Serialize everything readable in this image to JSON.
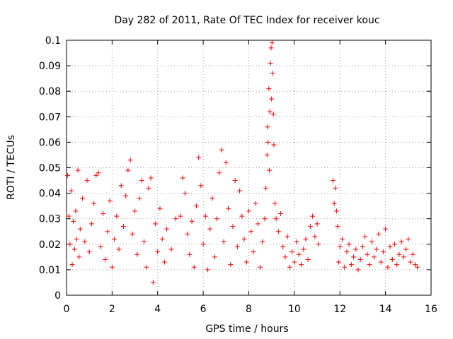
{
  "chart_data": {
    "type": "scatter",
    "title": "Day 282 of 2011, Rate Of TEC Index for receiver kouc",
    "xlabel": "GPS time / hours",
    "ylabel": "ROTI / TECUs",
    "xlim": [
      0,
      16
    ],
    "ylim": [
      0,
      0.1
    ],
    "xticks": [
      "0",
      "2",
      "4",
      "6",
      "8",
      "10",
      "12",
      "14",
      "16"
    ],
    "yticks": [
      "0",
      "0.01",
      "0.02",
      "0.03",
      "0.04",
      "0.05",
      "0.06",
      "0.07",
      "0.08",
      "0.09",
      "0.1"
    ],
    "grid": true,
    "marker": "+",
    "color": "#ff0000",
    "series": [
      {
        "name": "ROTI",
        "points": [
          [
            0.05,
            0.047
          ],
          [
            0.1,
            0.031
          ],
          [
            0.15,
            0.02
          ],
          [
            0.2,
            0.041
          ],
          [
            0.25,
            0.012
          ],
          [
            0.3,
            0.029
          ],
          [
            0.35,
            0.018
          ],
          [
            0.4,
            0.033
          ],
          [
            0.45,
            0.022
          ],
          [
            0.5,
            0.049
          ],
          [
            0.55,
            0.015
          ],
          [
            0.6,
            0.026
          ],
          [
            0.7,
            0.038
          ],
          [
            0.8,
            0.021
          ],
          [
            0.9,
            0.045
          ],
          [
            1.0,
            0.017
          ],
          [
            1.1,
            0.028
          ],
          [
            1.2,
            0.036
          ],
          [
            1.3,
            0.047
          ],
          [
            1.4,
            0.048
          ],
          [
            1.5,
            0.019
          ],
          [
            1.6,
            0.032
          ],
          [
            1.7,
            0.014
          ],
          [
            1.8,
            0.025
          ],
          [
            1.9,
            0.037
          ],
          [
            2.0,
            0.011
          ],
          [
            2.1,
            0.022
          ],
          [
            2.2,
            0.031
          ],
          [
            2.3,
            0.018
          ],
          [
            2.4,
            0.043
          ],
          [
            2.5,
            0.027
          ],
          [
            2.6,
            0.039
          ],
          [
            2.7,
            0.049
          ],
          [
            2.8,
            0.053
          ],
          [
            2.9,
            0.024
          ],
          [
            3.0,
            0.033
          ],
          [
            3.1,
            0.016
          ],
          [
            3.2,
            0.038
          ],
          [
            3.3,
            0.045
          ],
          [
            3.4,
            0.021
          ],
          [
            3.5,
            0.011
          ],
          [
            3.6,
            0.042
          ],
          [
            3.7,
            0.046
          ],
          [
            3.8,
            0.005
          ],
          [
            3.9,
            0.028
          ],
          [
            4.0,
            0.017
          ],
          [
            4.1,
            0.034
          ],
          [
            4.2,
            0.022
          ],
          [
            4.3,
            0.013
          ],
          [
            4.4,
            0.026
          ],
          [
            4.6,
            0.018
          ],
          [
            4.8,
            0.03
          ],
          [
            5.0,
            0.031
          ],
          [
            5.1,
            0.046
          ],
          [
            5.2,
            0.04
          ],
          [
            5.3,
            0.024
          ],
          [
            5.4,
            0.016
          ],
          [
            5.5,
            0.029
          ],
          [
            5.6,
            0.011
          ],
          [
            5.7,
            0.035
          ],
          [
            5.8,
            0.054
          ],
          [
            5.9,
            0.043
          ],
          [
            6.0,
            0.02
          ],
          [
            6.1,
            0.031
          ],
          [
            6.2,
            0.01
          ],
          [
            6.3,
            0.026
          ],
          [
            6.4,
            0.038
          ],
          [
            6.5,
            0.015
          ],
          [
            6.6,
            0.03
          ],
          [
            6.7,
            0.048
          ],
          [
            6.8,
            0.057
          ],
          [
            6.9,
            0.021
          ],
          [
            7.0,
            0.052
          ],
          [
            7.1,
            0.034
          ],
          [
            7.2,
            0.012
          ],
          [
            7.3,
            0.027
          ],
          [
            7.4,
            0.045
          ],
          [
            7.5,
            0.019
          ],
          [
            7.6,
            0.041
          ],
          [
            7.7,
            0.031
          ],
          [
            7.8,
            0.022
          ],
          [
            7.9,
            0.013
          ],
          [
            8.0,
            0.033
          ],
          [
            8.1,
            0.025
          ],
          [
            8.2,
            0.017
          ],
          [
            8.3,
            0.036
          ],
          [
            8.4,
            0.028
          ],
          [
            8.5,
            0.011
          ],
          [
            8.6,
            0.021
          ],
          [
            8.7,
            0.03
          ],
          [
            8.75,
            0.042
          ],
          [
            8.8,
            0.055
          ],
          [
            8.82,
            0.066
          ],
          [
            8.85,
            0.06
          ],
          [
            8.88,
            0.081
          ],
          [
            8.9,
            0.049
          ],
          [
            8.92,
            0.072
          ],
          [
            8.95,
            0.091
          ],
          [
            8.98,
            0.097
          ],
          [
            9.0,
            0.077
          ],
          [
            9.02,
            0.099
          ],
          [
            9.05,
            0.087
          ],
          [
            9.08,
            0.071
          ],
          [
            9.1,
            0.059
          ],
          [
            9.15,
            0.036
          ],
          [
            9.2,
            0.03
          ],
          [
            9.3,
            0.025
          ],
          [
            9.4,
            0.032
          ],
          [
            9.5,
            0.019
          ],
          [
            9.6,
            0.015
          ],
          [
            9.7,
            0.023
          ],
          [
            9.8,
            0.011
          ],
          [
            9.9,
            0.017
          ],
          [
            10.0,
            0.013
          ],
          [
            10.1,
            0.021
          ],
          [
            10.2,
            0.016
          ],
          [
            10.3,
            0.012
          ],
          [
            10.4,
            0.018
          ],
          [
            10.5,
            0.022
          ],
          [
            10.6,
            0.014
          ],
          [
            10.7,
            0.027
          ],
          [
            10.8,
            0.031
          ],
          [
            10.9,
            0.023
          ],
          [
            11.0,
            0.028
          ],
          [
            11.05,
            0.02
          ],
          [
            11.7,
            0.045
          ],
          [
            11.75,
            0.036
          ],
          [
            11.8,
            0.042
          ],
          [
            11.85,
            0.033
          ],
          [
            11.9,
            0.027
          ],
          [
            11.95,
            0.013
          ],
          [
            12.0,
            0.019
          ],
          [
            12.1,
            0.022
          ],
          [
            12.2,
            0.011
          ],
          [
            12.3,
            0.017
          ],
          [
            12.4,
            0.02
          ],
          [
            12.5,
            0.012
          ],
          [
            12.6,
            0.015
          ],
          [
            12.7,
            0.018
          ],
          [
            12.8,
            0.01
          ],
          [
            12.9,
            0.014
          ],
          [
            13.0,
            0.019
          ],
          [
            13.1,
            0.023
          ],
          [
            13.2,
            0.016
          ],
          [
            13.3,
            0.012
          ],
          [
            13.4,
            0.021
          ],
          [
            13.5,
            0.015
          ],
          [
            13.6,
            0.018
          ],
          [
            13.7,
            0.024
          ],
          [
            13.8,
            0.013
          ],
          [
            13.9,
            0.017
          ],
          [
            14.0,
            0.026
          ],
          [
            14.1,
            0.011
          ],
          [
            14.2,
            0.019
          ],
          [
            14.3,
            0.014
          ],
          [
            14.4,
            0.02
          ],
          [
            14.5,
            0.012
          ],
          [
            14.6,
            0.016
          ],
          [
            14.7,
            0.021
          ],
          [
            14.8,
            0.015
          ],
          [
            14.9,
            0.018
          ],
          [
            15.0,
            0.022
          ],
          [
            15.1,
            0.013
          ],
          [
            15.2,
            0.016
          ],
          [
            15.3,
            0.012
          ],
          [
            15.4,
            0.011
          ]
        ]
      }
    ]
  }
}
